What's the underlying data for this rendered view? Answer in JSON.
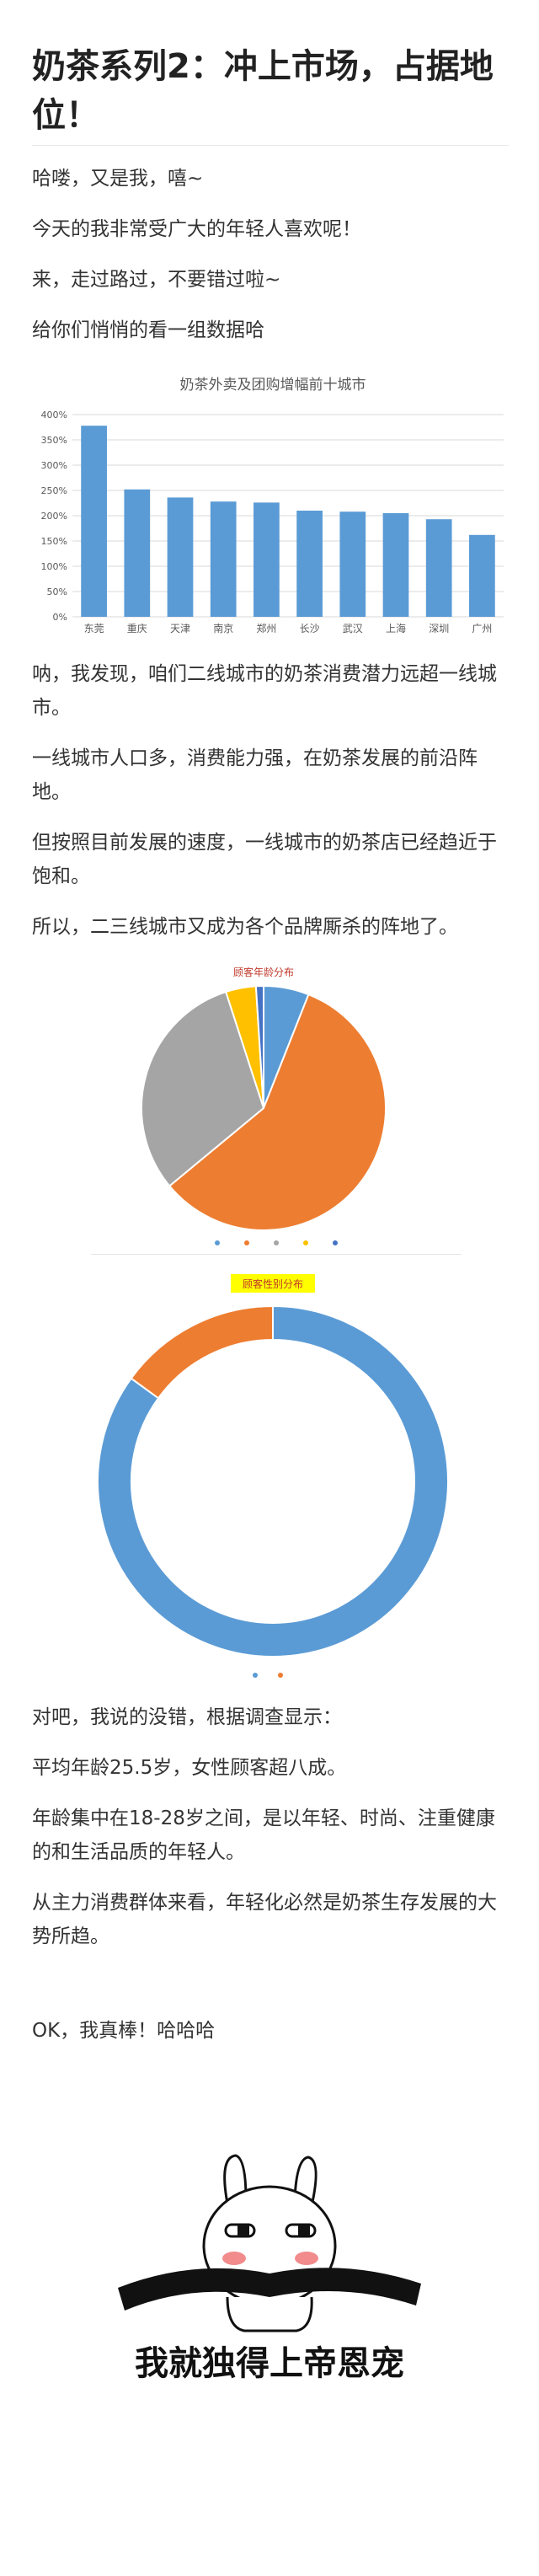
{
  "article": {
    "title": "奶茶系列2：冲上市场，占据地位！",
    "para1": "哈喽，又是我，嘻~",
    "para2": "今天的我非常受广大的年轻人喜欢呢！",
    "para3": "来，走过路过，不要错过啦~",
    "para4": "给你们悄悄的看一组数据哈",
    "para5": "呐，我发现，咱们二线城市的奶茶消费潜力远超一线城市。",
    "para6": "一线城市人口多，消费能力强，在奶茶发展的前沿阵地。",
    "para7": "但按照目前发展的速度，一线城市的奶茶店已经趋近于饱和。",
    "para8": "所以，二三线城市又成为各个品牌厮杀的阵地了。",
    "para9": "对吧，我说的没错，根据调查显示：",
    "para10": "平均年龄25.5岁，女性顾客超八成。",
    "para11": "年龄集中在18-28岁之间，是以年轻、时尚、注重健康的和生活品质的年轻人。",
    "para12": "从主力消费群体来看，年轻化必然是奶茶生存发展的大势所趋。",
    "para13": "OK，我真棒！哈哈哈",
    "sticker_caption": "我就独得上帝恩宠"
  },
  "colors": {
    "bar": "#5b9bd5",
    "orange": "#ed7d31",
    "grey": "#a5a5a5",
    "yellow": "#ffc000",
    "highlight": "#ffff00"
  },
  "chart_data": [
    {
      "type": "bar",
      "title": "奶茶外卖及团购增幅前十城市",
      "categories": [
        "东莞",
        "重庆",
        "天津",
        "南京",
        "郑州",
        "长沙",
        "武汉",
        "上海",
        "深圳",
        "广州"
      ],
      "values": [
        378,
        252,
        236,
        228,
        226,
        210,
        208,
        205,
        193,
        162
      ],
      "ylim": [
        0,
        400
      ],
      "yticks": [
        "0%",
        "50%",
        "100%",
        "150%",
        "200%",
        "250%",
        "300%",
        "350%",
        "400%"
      ],
      "grid": true
    },
    {
      "type": "pie",
      "title": "顾客年龄分布",
      "values": [
        6,
        58,
        31,
        4,
        1
      ],
      "colors": [
        "#5b9bd5",
        "#ed7d31",
        "#a5a5a5",
        "#ffc000",
        "#4472c4"
      ]
    },
    {
      "type": "pie",
      "title": "顾客性别分布",
      "values": [
        85,
        15
      ],
      "colors": [
        "#5b9bd5",
        "#ed7d31"
      ]
    }
  ]
}
